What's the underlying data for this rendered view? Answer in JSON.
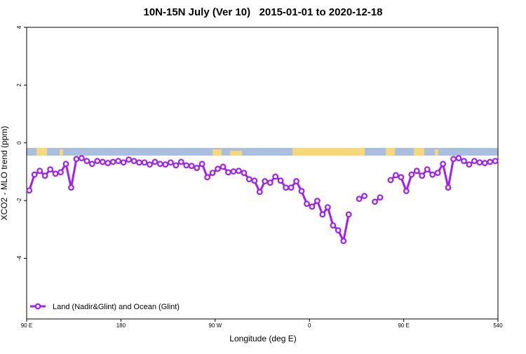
{
  "chart_data": {
    "type": "line",
    "title": "10N-15N July (Ver 10)   2015-01-01 to 2020-12-18",
    "x_label": "Longitude (deg E)",
    "y_label": "XCO2 - MLO trend (ppm)",
    "x": [
      92.5,
      97.5,
      102.5,
      107.5,
      112.5,
      117.5,
      122.5,
      127.5,
      132.5,
      137.5,
      142.5,
      147.5,
      152.5,
      157.5,
      162.5,
      167.5,
      172.5,
      177.5,
      182.5,
      187.5,
      192.5,
      197.5,
      202.5,
      207.5,
      212.5,
      217.5,
      222.5,
      227.5,
      232.5,
      237.5,
      242.5,
      247.5,
      252.5,
      257.5,
      262.5,
      267.5,
      272.5,
      277.5,
      282.5,
      287.5,
      292.5,
      297.5,
      302.5,
      307.5,
      312.5,
      317.5,
      322.5,
      327.5,
      332.5,
      337.5,
      342.5,
      347.5,
      352.5,
      357.5,
      362.5,
      367.5,
      372.5,
      377.5,
      382.5,
      387.5,
      392.5,
      397.5,
      402.5,
      407.5,
      412.5,
      417.5,
      422.5,
      427.5,
      432.5,
      437.5,
      442.5,
      447.5,
      452.5,
      457.5,
      462.5,
      467.5,
      472.5,
      477.5,
      482.5,
      487.5,
      492.5,
      497.5,
      502.5,
      507.5,
      512.5,
      517.5,
      522.5,
      527.5,
      532.5,
      537.5
    ],
    "series": [
      {
        "name": "Land (Nadir&Glint) and Ocean (Glint)",
        "color": "#a020f0",
        "values": [
          -1.65,
          -1.1,
          -0.97,
          -1.14,
          -0.92,
          -1.07,
          -1.02,
          -0.73,
          -1.55,
          -0.56,
          -0.53,
          -0.63,
          -0.73,
          -0.63,
          -0.66,
          -0.7,
          -0.66,
          -0.63,
          -0.68,
          -0.58,
          -0.63,
          -0.68,
          -0.68,
          -0.75,
          -0.66,
          -0.73,
          -0.75,
          -0.68,
          -0.78,
          -0.66,
          -0.78,
          -0.8,
          -0.87,
          -0.73,
          -1.19,
          -1.04,
          -0.9,
          -0.83,
          -1.02,
          -0.99,
          -0.97,
          -1.04,
          -1.26,
          -1.31,
          -1.7,
          -1.33,
          -1.38,
          -1.17,
          -1.31,
          -1.55,
          -1.55,
          -1.33,
          -1.67,
          -2.11,
          -2.21,
          -2.01,
          -2.48,
          -2.23,
          -2.86,
          -3.03,
          -3.4,
          -2.48,
          null,
          -1.94,
          -1.84,
          null,
          -2.04,
          -1.89,
          null,
          -1.29,
          -1.12,
          -1.19,
          -1.67,
          -1.1,
          -0.97,
          -1.14,
          -0.92,
          -1.1,
          -1.04,
          -0.73,
          -1.55,
          -0.56,
          -0.53,
          -0.63,
          -0.75,
          -0.63,
          -0.68,
          -0.7,
          -0.66,
          -0.63
        ]
      }
    ],
    "xlim": [
      90,
      540
    ],
    "xticks": [
      {
        "value": 90,
        "label": "90 E"
      },
      180,
      {
        "value": 270,
        "label": "90 W"
      },
      {
        "value": 360,
        "label": "0"
      },
      {
        "value": 450,
        "label": "90 E"
      },
      540
    ],
    "ylim": [
      -6.1,
      4
    ],
    "yticks": [
      4,
      2,
      0,
      -2,
      -4
    ],
    "legend": "bottom-left"
  }
}
